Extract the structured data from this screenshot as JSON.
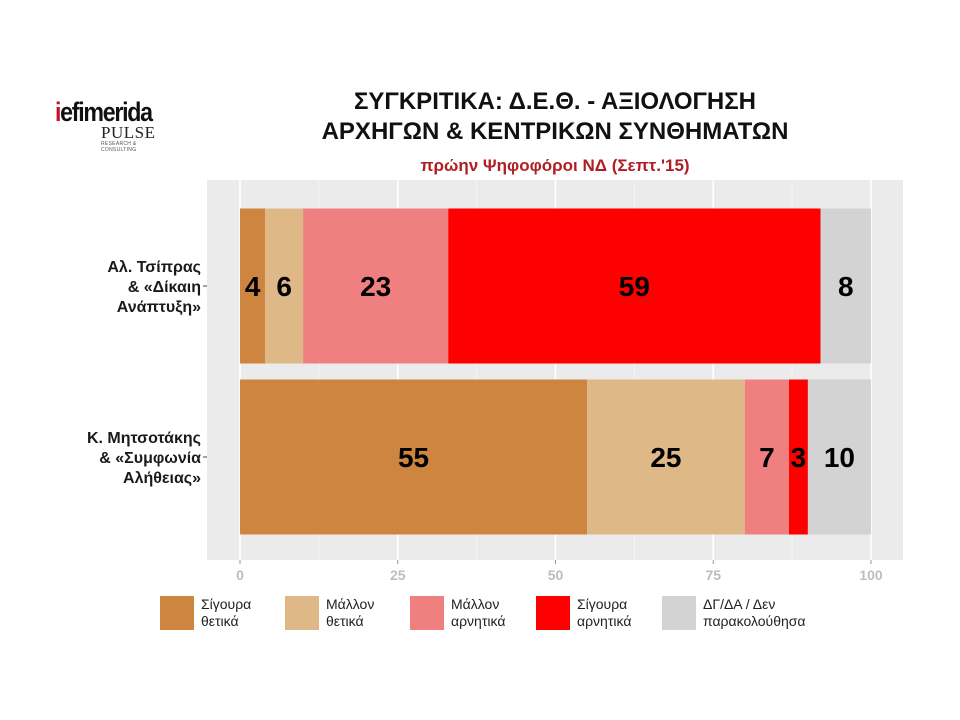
{
  "logo": {
    "brand_i": "i",
    "brand_rest": "efimerida",
    "partner": "PULSE",
    "partner_sub": "RESEARCH & CONSULTING"
  },
  "header": {
    "title_line1": "ΣΥΓΚΡΙΤΙΚΑ:  Δ.Ε.Θ. - ΑΞΙΟΛΟΓΗΣΗ",
    "title_line2": "ΑΡΧΗΓΩΝ & ΚΕΝΤΡΙΚΩΝ ΣΥΝΘΗΜΑΤΩΝ",
    "subtitle": "πρώην Ψηφοφόροι ΝΔ (Σεπτ.'15)"
  },
  "chart_data": {
    "type": "bar",
    "orientation": "horizontal",
    "stacked": true,
    "categories": [
      [
        "Αλ. Τσίπρας",
        "& «Δίκαιη",
        "Ανάπτυξη»"
      ],
      [
        "Κ. Μητσοτάκης",
        "& «Συμφωνία",
        "Αλήθειας»"
      ]
    ],
    "series": [
      {
        "name": "Σίγουρα θετικά",
        "color": "#cd853f",
        "values": [
          4,
          55
        ]
      },
      {
        "name": "Μάλλον θετικά",
        "color": "#deb887",
        "values": [
          6,
          25
        ]
      },
      {
        "name": "Μάλλον αρνητικά",
        "color": "#f08080",
        "values": [
          23,
          7
        ]
      },
      {
        "name": "Σίγουρα αρνητικά",
        "color": "#ff0000",
        "values": [
          59,
          3
        ]
      },
      {
        "name": "ΔΓ/ΔΑ / Δεν παρακολούθησα",
        "color": "#d3d3d3",
        "values": [
          8,
          10
        ]
      }
    ],
    "xlim": [
      0,
      100
    ],
    "xticks": [
      "0",
      "25",
      "50",
      "75",
      "100"
    ],
    "grid": true,
    "panel_background": "#ebebeb",
    "legend_position": "bottom"
  },
  "legend": [
    {
      "label": "Σίγουρα\nθετικά",
      "color": "#cd853f"
    },
    {
      "label": "Μάλλον\nθετικά",
      "color": "#deb887"
    },
    {
      "label": "Μάλλον\nαρνητικά",
      "color": "#f08080"
    },
    {
      "label": "Σίγουρα\nαρνητικά",
      "color": "#ff0000"
    },
    {
      "label": "ΔΓ/ΔΑ / Δεν\nπαρακολούθησα",
      "color": "#d3d3d3"
    }
  ]
}
